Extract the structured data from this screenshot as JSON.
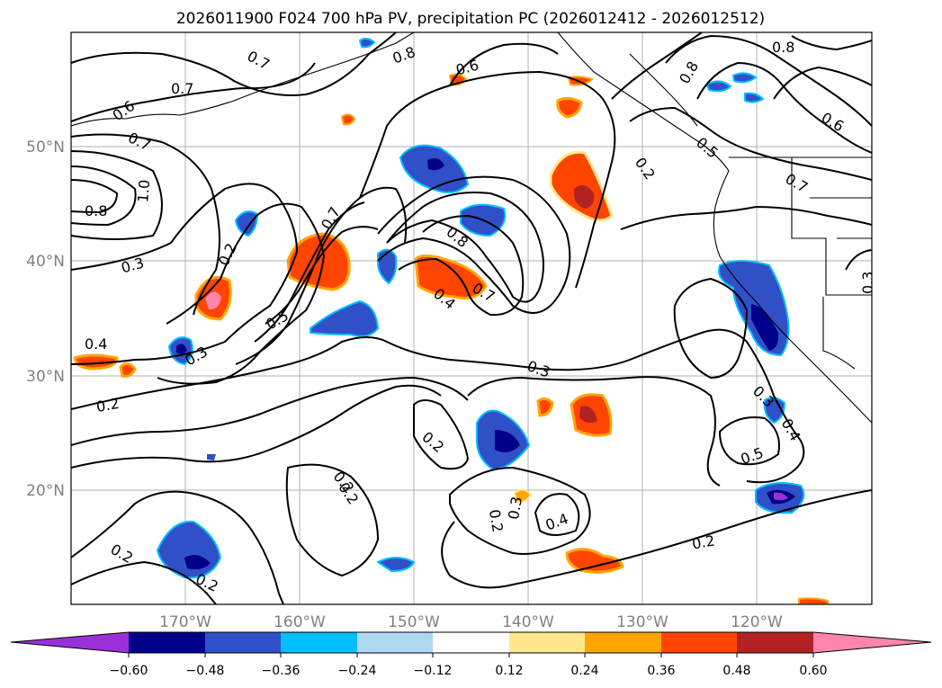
{
  "title": "2026011900 F024 700 hPa PV, precipitation PC (2026012412 - 2026012512)",
  "map": {
    "lon_ticks": [
      "170°W",
      "160°W",
      "150°W",
      "140°W",
      "130°W",
      "120°W"
    ],
    "lat_ticks": [
      "50°N",
      "40°N",
      "30°N",
      "20°N"
    ],
    "grid": true
  },
  "contour_labels": [
    "0.7",
    "0.8",
    "0.6",
    "0.7",
    "0.6",
    "0.8",
    "0.8",
    "0.6",
    "0.7",
    "1.0",
    "0.8",
    "0.7",
    "0.2",
    "0.3",
    "0.5",
    "0.8",
    "0.7",
    "0.4",
    "0.2",
    "0.5",
    "0.3",
    "0.7",
    "0.3",
    "0.4",
    "0.3",
    "0.2",
    "0.2",
    "0.2",
    "0.2",
    "0.2",
    "0.3",
    "0.4",
    "0.2",
    "0.5",
    "0.2",
    "0.4",
    "0.2",
    "0.3"
  ],
  "colorbar": {
    "colors": [
      "#9b30d9",
      "#00008b",
      "#3050c8",
      "#00bfff",
      "#add8f0",
      "#ffffff",
      "#ffe68a",
      "#ffa500",
      "#ff4500",
      "#b22222",
      "#ff85ad"
    ],
    "tick_labels": [
      "−0.60",
      "−0.48",
      "−0.36",
      "−0.24",
      "−0.12",
      "0.12",
      "0.24",
      "0.36",
      "0.48",
      "0.60"
    ]
  },
  "chart_data": {
    "type": "map",
    "projection": "lat-lon",
    "lon_range": [
      -180,
      -110
    ],
    "lat_range": [
      10,
      60
    ],
    "fields": [
      "700 hPa PV (contours)",
      "precipitation PC (shaded)"
    ],
    "contour_levels_labeled": [
      0.2,
      0.3,
      0.4,
      0.5,
      0.6,
      0.7,
      0.8,
      1.0
    ],
    "shading_levels": [
      -0.6,
      -0.48,
      -0.36,
      -0.24,
      -0.12,
      0.12,
      0.24,
      0.36,
      0.48,
      0.6
    ]
  }
}
